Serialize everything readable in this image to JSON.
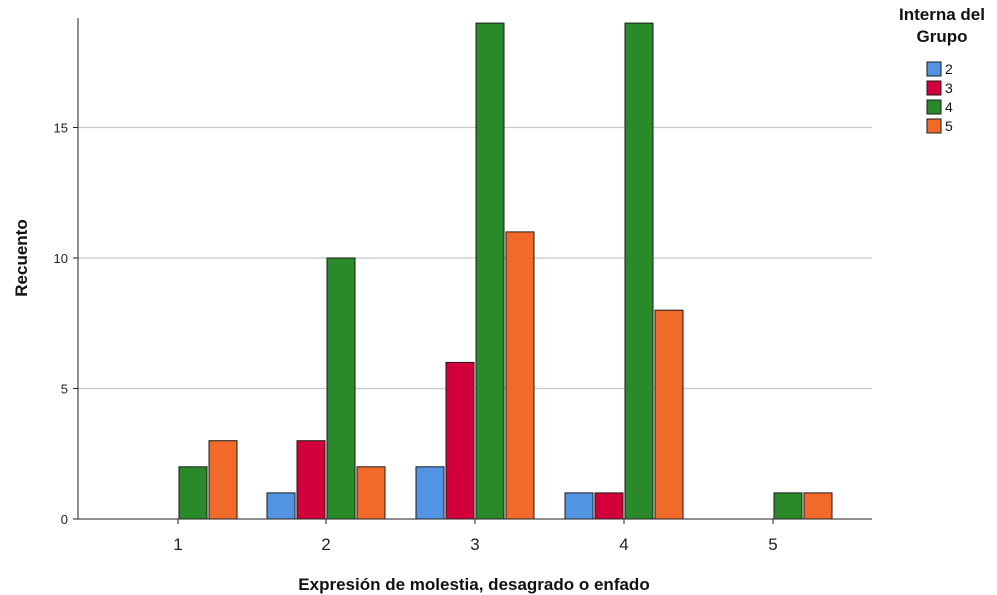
{
  "chart_data": {
    "type": "bar",
    "categories": [
      "1",
      "2",
      "3",
      "4",
      "5"
    ],
    "xlabel": "Expresión de molestia, desagrado o enfado",
    "ylabel": "Recuento",
    "yticks": [
      0,
      5,
      10,
      15
    ],
    "ylim": [
      0,
      19
    ],
    "grid": true,
    "legend_position": "top-right",
    "legend_title_line1": "Interna del",
    "legend_title_line2": "Grupo",
    "series": [
      {
        "name": "2",
        "color": "#5294e2",
        "values": [
          null,
          1,
          2,
          1,
          null
        ]
      },
      {
        "name": "3",
        "color": "#d2003a",
        "values": [
          null,
          3,
          6,
          1,
          null
        ]
      },
      {
        "name": "4",
        "color": "#2a8a2a",
        "values": [
          2,
          10,
          19,
          19,
          1
        ]
      },
      {
        "name": "5",
        "color": "#f26a2a",
        "values": [
          3,
          2,
          11,
          8,
          1
        ]
      }
    ]
  }
}
